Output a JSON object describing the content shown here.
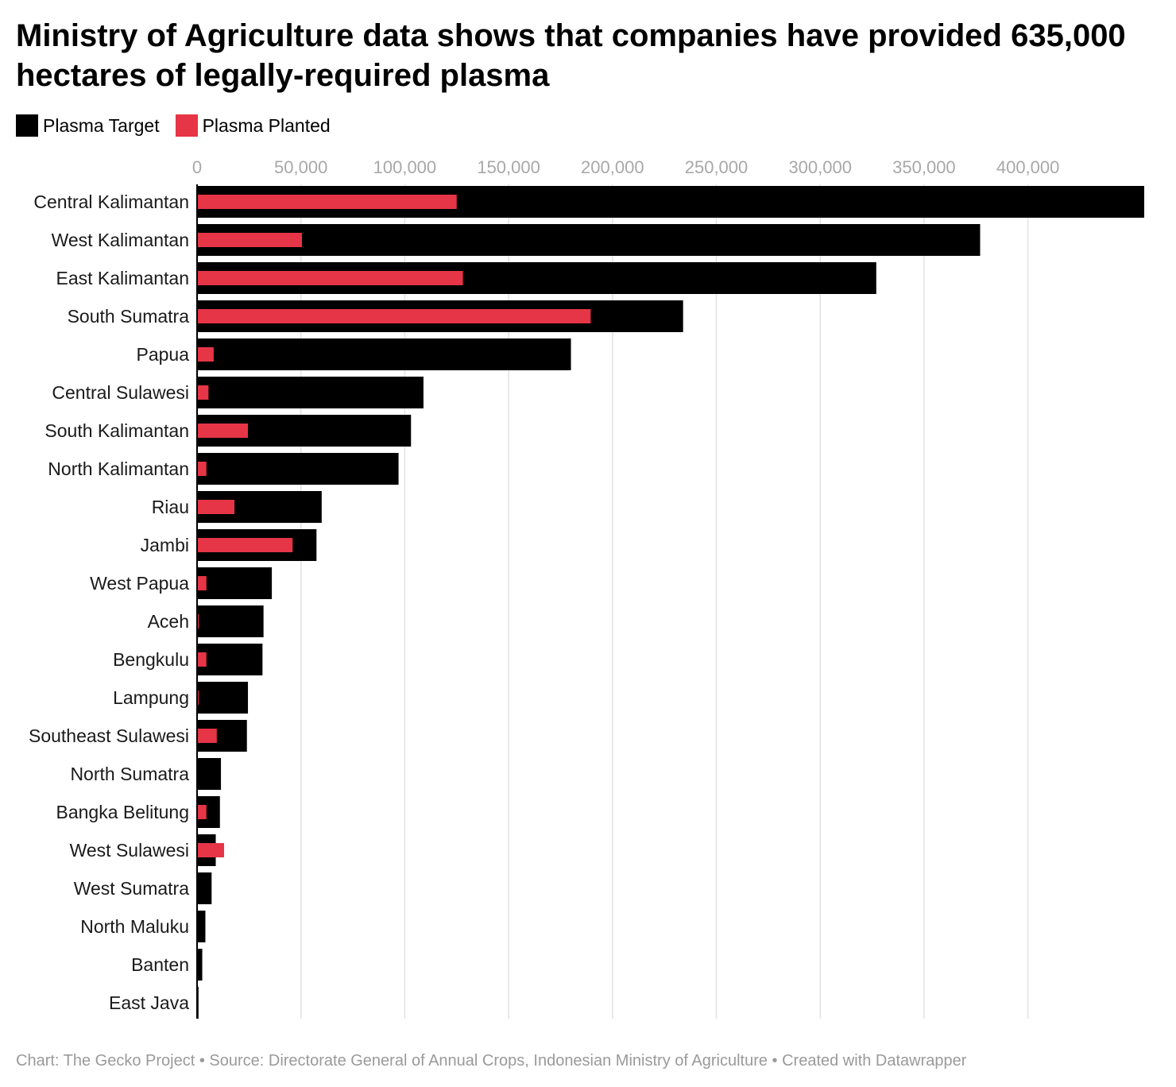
{
  "title": "Ministry of Agriculture data shows that companies have provided 635,000 hectares of legally-required plasma",
  "legend": {
    "target_label": "Plasma Target",
    "planted_label": "Plasma Planted"
  },
  "source": "Chart: The Gecko Project • Source: Directorate General of Annual Crops, Indonesian Ministry of Agriculture • Created with Datawrapper",
  "colors": {
    "target": "#000000",
    "planted": "#e63546",
    "grid": "#e2e2e2",
    "tick": "#a8a8a8"
  },
  "chart_data": {
    "type": "bar",
    "orientation": "horizontal",
    "x_ticks": [
      0,
      50000,
      100000,
      150000,
      200000,
      250000,
      300000,
      350000,
      400000
    ],
    "x_tick_labels": [
      "0",
      "50,000",
      "100,000",
      "150,000",
      "200,000",
      "250,000",
      "300,000",
      "350,000",
      "400,000"
    ],
    "xlim": [
      0,
      456000
    ],
    "grid": true,
    "legend_position": "top-left",
    "categories": [
      "Central Kalimantan",
      "West Kalimantan",
      "East Kalimantan",
      "South Sumatra",
      "Papua",
      "Central Sulawesi",
      "South Kalimantan",
      "North Kalimantan",
      "Riau",
      "Jambi",
      "West Papua",
      "Aceh",
      "Bengkulu",
      "Lampung",
      "Southeast Sulawesi",
      "North Sumatra",
      "Bangka Belitung",
      "West Sulawesi",
      "West Sumatra",
      "North Maluku",
      "Banten",
      "East Java"
    ],
    "series": [
      {
        "name": "Plasma Target",
        "values": [
          456000,
          377000,
          327000,
          234000,
          180000,
          109000,
          103000,
          97000,
          60000,
          57500,
          36000,
          32000,
          31500,
          24500,
          24000,
          11500,
          11000,
          9000,
          7000,
          4000,
          2500,
          700
        ]
      },
      {
        "name": "Plasma Planted",
        "values": [
          125000,
          50500,
          128000,
          189500,
          8000,
          5500,
          24500,
          4500,
          18000,
          46000,
          4500,
          800,
          4500,
          700,
          9500,
          0,
          4500,
          13000,
          0,
          0,
          0,
          0
        ]
      }
    ]
  }
}
